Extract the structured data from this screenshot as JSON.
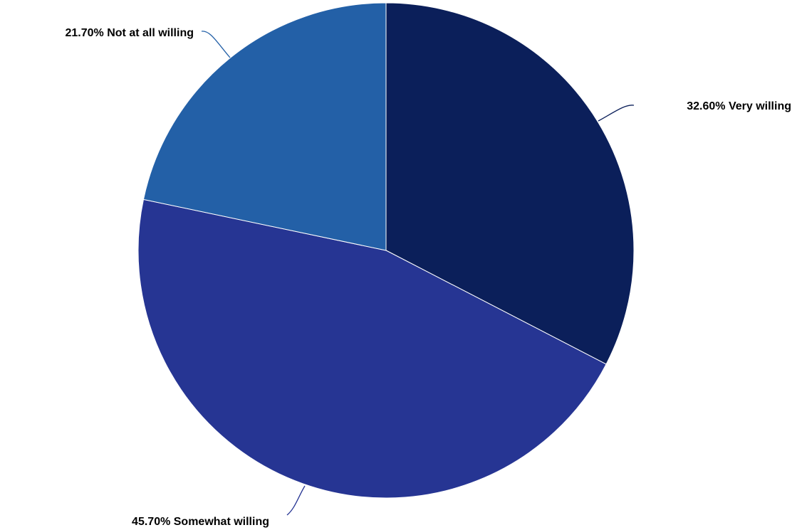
{
  "chart_data": {
    "type": "pie",
    "title": "",
    "slices": [
      {
        "label": "Very willing",
        "value": 32.6,
        "display": "32.60% Very willing",
        "color": "#0b1f5a"
      },
      {
        "label": "Somewhat willing",
        "value": 45.7,
        "display": "45.70% Somewhat willing",
        "color": "#263593"
      },
      {
        "label": "Not at all willing",
        "value": 21.7,
        "display": "21.70% Not at all willing",
        "color": "#2360a7"
      }
    ],
    "start_angle": "12 o'clock",
    "direction": "clockwise",
    "legend": "none"
  }
}
